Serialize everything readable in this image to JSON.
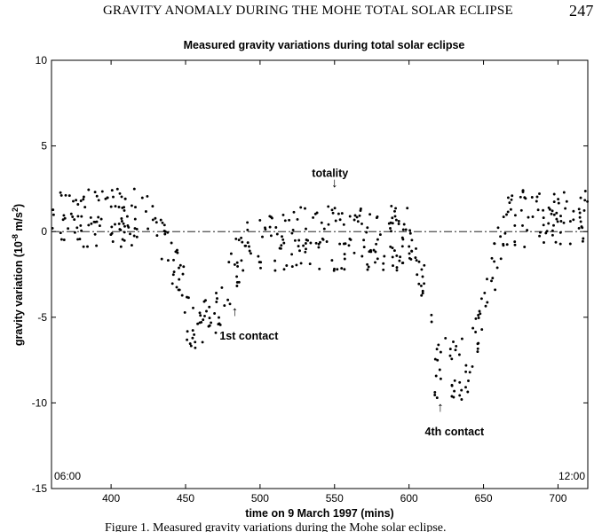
{
  "running_head": {
    "title": "GRAVITY ANOMALY DURING THE MOHE TOTAL SOLAR ECLIPSE",
    "page_number": "247"
  },
  "caption": "Figure 1. Measured gravity variations during the Mohe solar eclipse.",
  "chart_data": {
    "type": "scatter",
    "title": "Measured gravity variations during total solar eclipse",
    "xlabel": "time on 9 March 1997 (mins)",
    "ylabel": "gravity variation (10",
    "ylabel_exponent": "-8",
    "ylabel_unit": " m/s",
    "ylabel_unit_exponent": "2",
    "ylabel_close": ")",
    "xlim": [
      360,
      720
    ],
    "ylim": [
      -15,
      10
    ],
    "xticks": [
      400,
      450,
      500,
      550,
      600,
      650,
      700
    ],
    "yticks": [
      10,
      5,
      0,
      -5,
      -10,
      -15
    ],
    "grid": false,
    "reference_line": {
      "y": 0,
      "style": "dash-dot"
    },
    "corner_labels": {
      "left": "06:00",
      "right": "12:00"
    },
    "annotations": [
      {
        "text": "totality",
        "arrow": "↓",
        "x": 550,
        "y": 3.2,
        "arrow_y": 2.6
      },
      {
        "text": "1st contact",
        "arrow": "↑",
        "x": 483,
        "y": -6.3,
        "arrow_y": -4.9
      },
      {
        "text": "4th contact",
        "arrow": "↑",
        "x": 621,
        "y": -11.9,
        "arrow_y": -10.5
      }
    ],
    "series": [
      {
        "marker": "dot",
        "color": "#000000",
        "segments": [
          {
            "x": [
              360,
              430
            ],
            "center": 0.8,
            "spread": 1.7
          },
          {
            "x": [
              430,
              450
            ],
            "center": [
              0.2,
              -3.5
            ],
            "spread": 1.4
          },
          {
            "x": [
              450,
              470
            ],
            "center": -5.3,
            "spread": 1.5
          },
          {
            "x": [
              470,
              492
            ],
            "center": [
              -4.8,
              -0.3
            ],
            "spread": 1.6
          },
          {
            "x": [
              492,
              600
            ],
            "center": -0.4,
            "spread": 1.9
          },
          {
            "x": [
              600,
              617
            ],
            "center": [
              -0.8,
              -4.5
            ],
            "spread": 1.2
          },
          {
            "x": [
              617,
              642
            ],
            "center": -7.8,
            "spread": 2.0
          },
          {
            "x": [
              642,
              665
            ],
            "center": [
              -6.8,
              0.4
            ],
            "spread": 1.6
          },
          {
            "x": [
              665,
              720
            ],
            "center": 0.8,
            "spread": 1.7
          }
        ]
      }
    ]
  }
}
